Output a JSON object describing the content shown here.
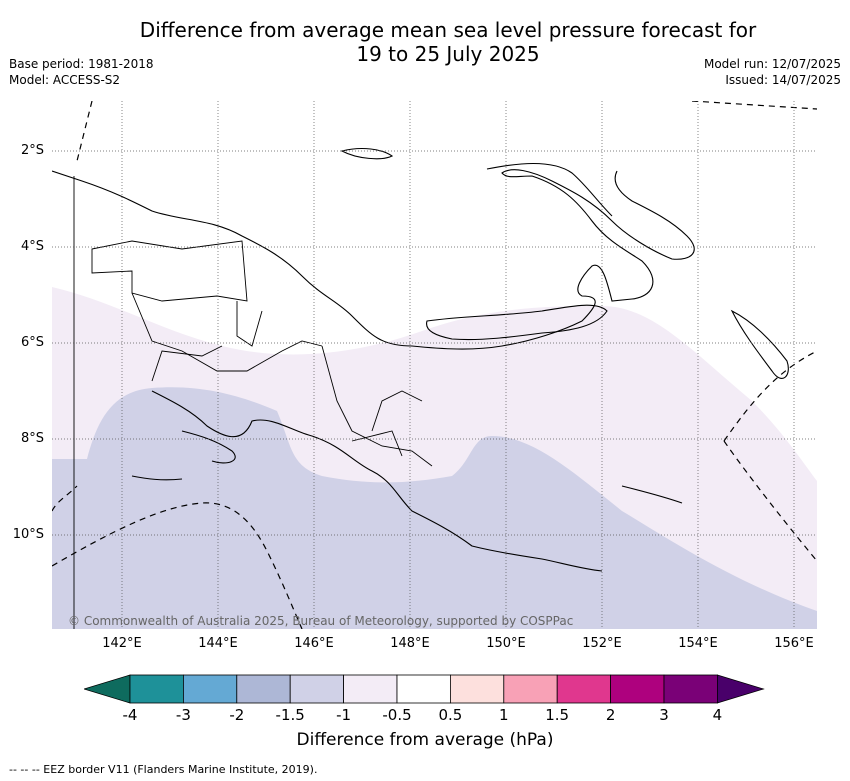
{
  "title": "Difference from average mean sea level pressure forecast for\n19 to 25 July 2025",
  "base_period": "Base period: 1981-2018",
  "model": "Model: ACCESS-S2",
  "model_run": "Model run: 12/07/2025",
  "issued": "Issued: 14/07/2025",
  "latitudes": [
    "2°S",
    "4°S",
    "6°S",
    "8°S",
    "10°S"
  ],
  "longitudes": [
    "142°E",
    "144°E",
    "146°E",
    "148°E",
    "150°E",
    "152°E",
    "154°E",
    "156°E"
  ],
  "credit": "© Commonwealth of Australia 2025, Bureau of Meteorology, supported by COSPPac",
  "colorbar": {
    "label": "Difference from average (hPa)",
    "ticks": [
      "-4",
      "-3",
      "-2",
      "-1.5",
      "-1",
      "-0.5",
      "0.5",
      "1",
      "1.5",
      "2",
      "3",
      "4"
    ],
    "colors": [
      "#0e6b5e",
      "#1e9199",
      "#64a9d4",
      "#adb7d6",
      "#d0d1e7",
      "#f3ecf6",
      "#ffffff",
      "#fde0dd",
      "#f8a1b6",
      "#e0378e",
      "#ae017e",
      "#7a0177",
      "#49006a"
    ]
  },
  "footer": "--  --  -- EEZ border V11 (Flanders Marine Institute, 2019).",
  "colors": {
    "anomaly_minus_1_5_to_minus_1": "#d0d1e7",
    "anomaly_minus_1_to_minus_0_5": "#f3ecf6",
    "gridline": "#555555"
  }
}
